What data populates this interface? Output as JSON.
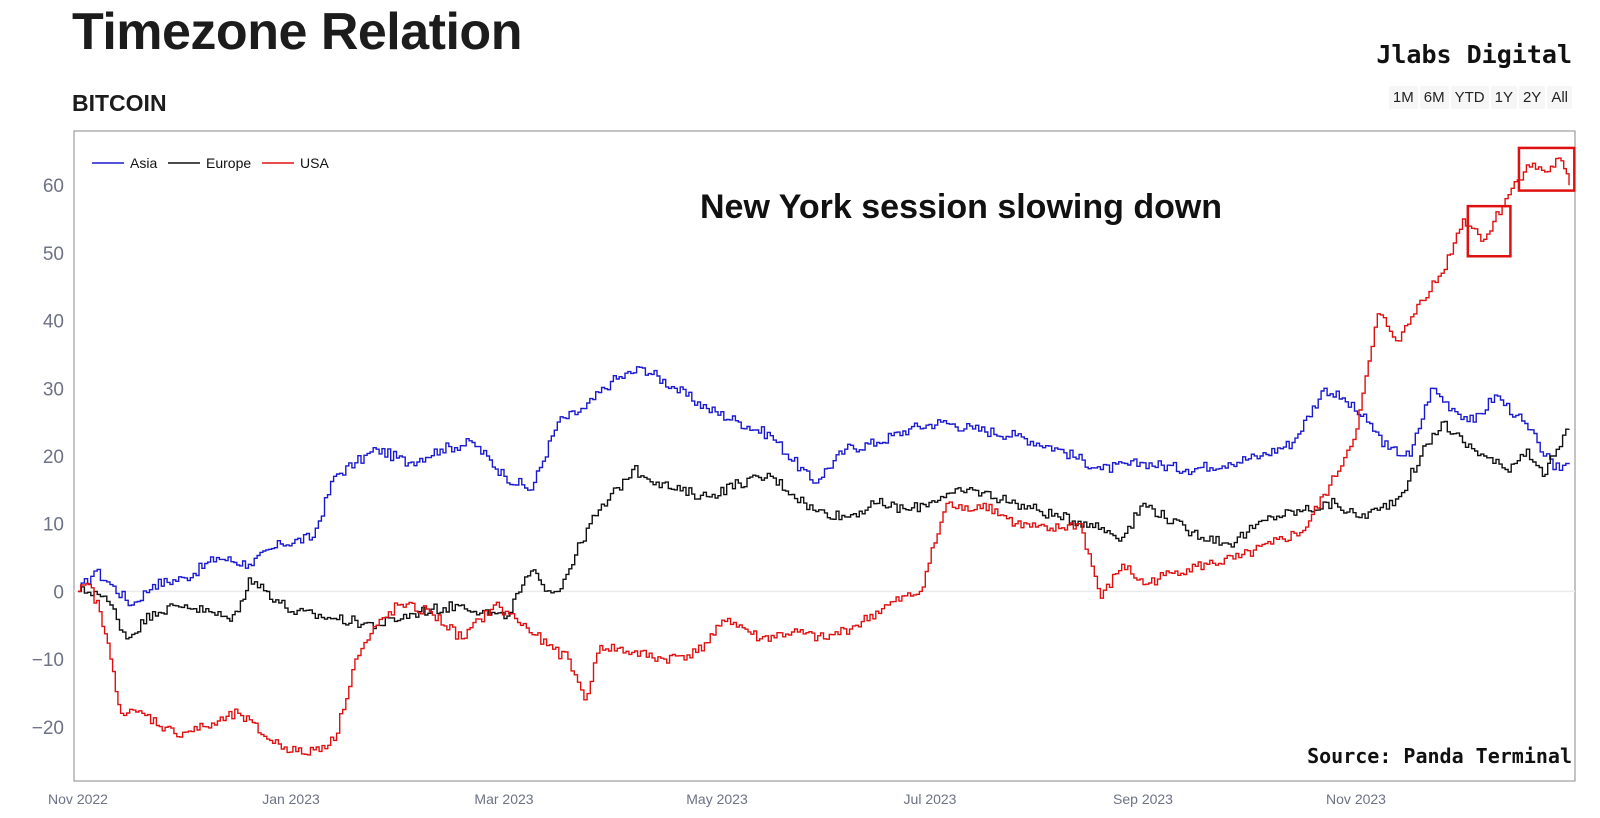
{
  "header": {
    "title": "Timezone Relation",
    "subtitle": "BITCOIN",
    "brand": "Jlabs Digital",
    "range_buttons": [
      "1M",
      "6M",
      "YTD",
      "1Y",
      "2Y",
      "All"
    ]
  },
  "annotation": "New York session slowing down",
  "source": "Source: Panda Terminal",
  "colors": {
    "asia": "#1a1ad0",
    "europe": "#111111",
    "usa": "#e01010",
    "highlight": "#e01010"
  },
  "chart_data": {
    "type": "line",
    "title": "Timezone Relation",
    "subtitle": "BITCOIN",
    "xlabel": "",
    "ylabel": "",
    "x_range": [
      "Nov 2022",
      "Dec 2023"
    ],
    "ylim": [
      -28,
      68
    ],
    "yticks": [
      60,
      50,
      40,
      30,
      20,
      10,
      0,
      -10,
      -20
    ],
    "ytick_labels": [
      "60",
      "50",
      "40",
      "30",
      "20",
      "10",
      "0",
      "−10",
      "−20"
    ],
    "xticks": [
      0,
      2,
      4,
      6,
      8,
      10,
      12
    ],
    "xtick_labels": [
      "Nov 2022",
      "Jan 2023",
      "Mar 2023",
      "May 2023",
      "Jul 2023",
      "Sep 2023",
      "Nov 2023"
    ],
    "legend": {
      "position": "top-left",
      "entries": [
        "Asia",
        "Europe",
        "USA"
      ]
    },
    "series": [
      {
        "name": "Asia",
        "x": [
          0,
          0.15,
          0.3,
          0.5,
          0.7,
          1.0,
          1.3,
          1.6,
          1.9,
          2.2,
          2.4,
          2.6,
          2.8,
          3.1,
          3.4,
          3.7,
          4.0,
          4.25,
          4.5,
          4.75,
          5.0,
          5.3,
          5.6,
          5.9,
          6.2,
          6.5,
          6.9,
          7.2,
          7.5,
          7.8,
          8.1,
          8.4,
          8.8,
          9.2,
          9.6,
          10.0,
          10.4,
          10.8,
          11.1,
          11.4,
          11.7,
          11.9,
          12.1,
          12.3,
          12.5,
          12.7,
          12.9,
          13.1,
          13.3,
          13.5,
          13.7,
          13.85,
          14.0
        ],
        "values": [
          0,
          3,
          1,
          -2,
          1,
          2,
          5,
          4,
          7,
          8,
          17,
          19,
          21,
          19,
          21,
          22,
          17,
          15,
          25,
          27,
          31,
          33,
          30,
          27,
          25,
          23,
          16,
          21,
          22,
          24,
          25,
          24,
          23,
          21,
          18,
          19,
          18,
          19,
          20,
          22,
          30,
          28,
          25,
          21,
          20,
          30,
          27,
          25,
          29,
          26,
          22,
          18,
          19
        ]
      },
      {
        "name": "Europe",
        "x": [
          0,
          0.15,
          0.3,
          0.45,
          0.7,
          1.0,
          1.4,
          1.5,
          1.6,
          2.0,
          2.4,
          2.8,
          3.2,
          3.6,
          4.0,
          4.25,
          4.35,
          4.5,
          4.8,
          5.2,
          5.6,
          5.9,
          6.2,
          6.5,
          6.9,
          7.2,
          7.5,
          7.8,
          8.1,
          8.4,
          8.8,
          9.2,
          9.5,
          9.8,
          10.0,
          10.4,
          10.8,
          11.2,
          11.5,
          11.8,
          12.0,
          12.2,
          12.4,
          12.6,
          12.8,
          13.0,
          13.2,
          13.4,
          13.6,
          13.75,
          13.85,
          14.0
        ],
        "values": [
          0,
          0,
          -2,
          -7,
          -3,
          -2,
          -4,
          -3,
          2,
          -3,
          -4,
          -5,
          -3,
          -2,
          -4,
          3,
          1,
          0,
          10,
          18,
          15,
          14,
          16,
          17,
          12,
          11,
          13,
          12,
          14,
          15,
          13,
          11,
          10,
          8,
          13,
          9,
          7,
          11,
          12,
          13,
          11,
          12,
          14,
          20,
          25,
          22,
          20,
          18,
          21,
          17,
          20,
          24
        ]
      },
      {
        "name": "USA",
        "x": [
          0,
          0.1,
          0.2,
          0.3,
          0.4,
          0.6,
          0.9,
          1.2,
          1.5,
          1.8,
          2.1,
          2.4,
          2.6,
          2.8,
          3.0,
          3.3,
          3.6,
          3.9,
          4.1,
          4.4,
          4.6,
          4.75,
          4.9,
          5.2,
          5.5,
          5.8,
          6.1,
          6.4,
          6.7,
          7.0,
          7.3,
          7.6,
          7.9,
          8.15,
          8.3,
          8.5,
          8.8,
          9.1,
          9.4,
          9.6,
          9.8,
          10.0,
          10.3,
          10.6,
          10.9,
          11.2,
          11.5,
          11.8,
          12.0,
          12.2,
          12.4,
          12.6,
          12.8,
          13.0,
          13.2,
          13.4,
          13.6,
          13.8,
          13.9,
          14.0
        ],
        "values": [
          0,
          1,
          -3,
          -10,
          -18,
          -18,
          -21,
          -20,
          -18,
          -22,
          -24,
          -22,
          -10,
          -5,
          -2,
          -3,
          -7,
          -2,
          -4,
          -8,
          -10,
          -16,
          -8,
          -9,
          -10,
          -9,
          -4,
          -7,
          -6,
          -7,
          -5,
          -2,
          0,
          13,
          12,
          13,
          10,
          9,
          10,
          -1,
          4,
          1,
          3,
          4,
          5,
          7,
          9,
          17,
          24,
          41,
          37,
          43,
          47,
          55,
          52,
          58,
          63,
          62,
          64,
          60
        ]
      }
    ],
    "highlight_boxes": [
      {
        "x0": 13.05,
        "x1": 13.45,
        "y0": 49.5,
        "y1": 56.9
      },
      {
        "x0": 13.53,
        "x1": 14.05,
        "y0": 59.2,
        "y1": 65.5
      }
    ]
  }
}
